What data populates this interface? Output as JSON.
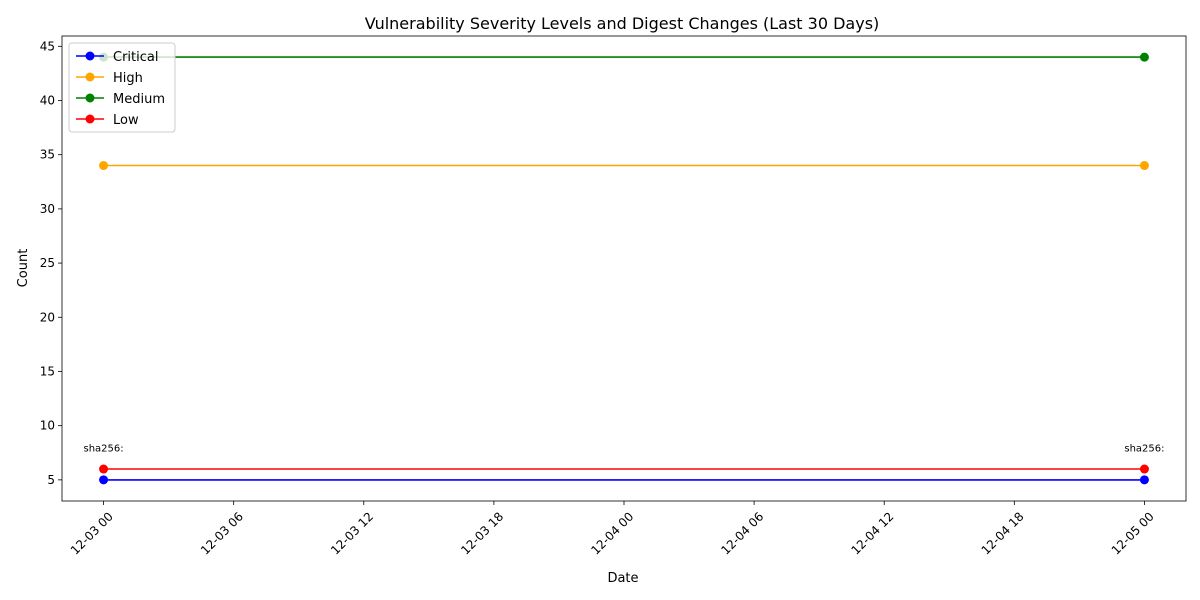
{
  "chart_data": {
    "type": "line",
    "title": "Vulnerability Severity Levels and Digest Changes (Last 30 Days)",
    "xlabel": "Date",
    "ylabel": "Count",
    "x": [
      "2023-12-03T00:00",
      "2023-12-05T00:00"
    ],
    "xlim": [
      "2023-12-02T22:05",
      "2023-12-05T01:55"
    ],
    "ylim": [
      3.05,
      45.95
    ],
    "x_tick_labels": [
      "12-03 00",
      "12-03 06",
      "12-03 12",
      "12-03 18",
      "12-04 00",
      "12-04 06",
      "12-04 12",
      "12-04 18",
      "12-05 00"
    ],
    "x_ticks": [
      "2023-12-03T00:00",
      "2023-12-03T06:00",
      "2023-12-03T12:00",
      "2023-12-03T18:00",
      "2023-12-04T00:00",
      "2023-12-04T06:00",
      "2023-12-04T12:00",
      "2023-12-04T18:00",
      "2023-12-05T00:00"
    ],
    "y_ticks": [
      5,
      10,
      15,
      20,
      25,
      30,
      35,
      40,
      45
    ],
    "grid": false,
    "legend_position": "upper-left",
    "series": [
      {
        "name": "Critical",
        "color": "#0000ff",
        "values": [
          5,
          5
        ]
      },
      {
        "name": "High",
        "color": "#ffa500",
        "values": [
          34,
          34
        ]
      },
      {
        "name": "Medium",
        "color": "#008000",
        "values": [
          44,
          44
        ]
      },
      {
        "name": "Low",
        "color": "#ff0000",
        "values": [
          6,
          6
        ]
      }
    ],
    "annotations": [
      {
        "x": "2023-12-03T00:00",
        "y": 8,
        "text": "sha256:"
      },
      {
        "x": "2023-12-05T00:00",
        "y": 8,
        "text": "sha256:"
      }
    ]
  }
}
